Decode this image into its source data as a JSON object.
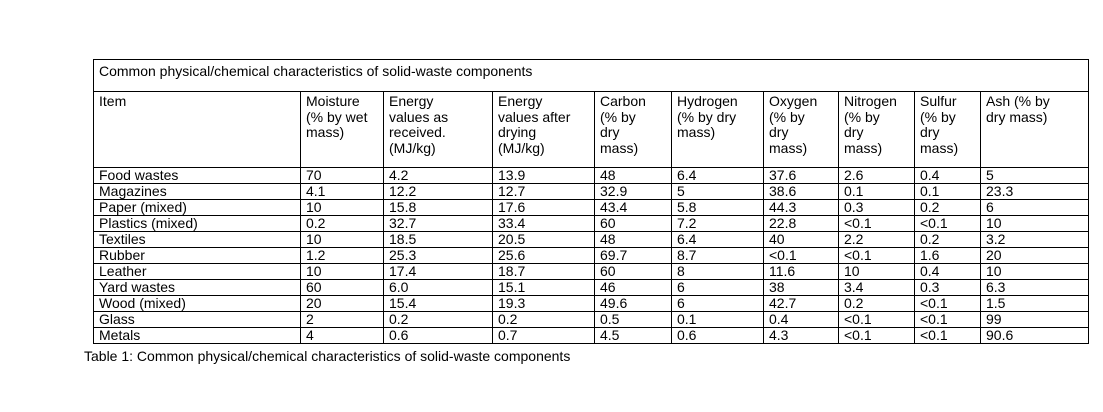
{
  "page": {
    "background": "#ffffff",
    "text_color": "#000000",
    "border_color": "#000000"
  },
  "table": {
    "title": "Common physical/chemical characteristics of solid-waste components",
    "columns": [
      "Item",
      "Moisture\n(% by wet\nmass)",
      "Energy\nvalues as\nreceived.\n(MJ/kg)",
      "Energy\nvalues after\ndrying\n(MJ/kg)",
      "Carbon\n(% by\ndry\nmass)",
      "Hydrogen\n(% by dry\nmass)",
      "Oxygen\n(% by\ndry\nmass)",
      "Nitrogen\n(% by\ndry\nmass)",
      "Sulfur\n(% by\ndry\nmass)",
      "Ash (% by\ndry mass)"
    ],
    "rows": [
      [
        "Food wastes",
        "70",
        "4.2",
        "13.9",
        "48",
        "6.4",
        "37.6",
        "2.6",
        "0.4",
        "5"
      ],
      [
        "Magazines",
        "4.1",
        "12.2",
        "12.7",
        "32.9",
        "5",
        "38.6",
        "0.1",
        "0.1",
        "23.3"
      ],
      [
        "Paper (mixed)",
        "10",
        "15.8",
        "17.6",
        "43.4",
        "5.8",
        "44.3",
        "0.3",
        "0.2",
        "6"
      ],
      [
        "Plastics (mixed)",
        "0.2",
        "32.7",
        "33.4",
        "60",
        "7.2",
        "22.8",
        "<0.1",
        "<0.1",
        "10"
      ],
      [
        "Textiles",
        "10",
        "18.5",
        "20.5",
        "48",
        "6.4",
        "40",
        "2.2",
        "0.2",
        "3.2"
      ],
      [
        "Rubber",
        "1.2",
        "25.3",
        "25.6",
        "69.7",
        "8.7",
        "<0.1",
        "<0.1",
        "1.6",
        "20"
      ],
      [
        "Leather",
        "10",
        "17.4",
        "18.7",
        "60",
        "8",
        "11.6",
        "10",
        "0.4",
        "10"
      ],
      [
        "Yard wastes",
        "60",
        "6.0",
        "15.1",
        "46",
        "6",
        "38",
        "3.4",
        "0.3",
        "6.3"
      ],
      [
        "Wood (mixed)",
        "20",
        "15.4",
        "19.3",
        "49.6",
        "6",
        "42.7",
        "0.2",
        "<0.1",
        "1.5"
      ],
      [
        "Glass",
        "2",
        "0.2",
        "0.2",
        "0.5",
        "0.1",
        "0.4",
        "<0.1",
        "<0.1",
        "99"
      ],
      [
        "Metals",
        "4",
        "0.6",
        "0.7",
        "4.5",
        "0.6",
        "4.3",
        "<0.1",
        "<0.1",
        "90.6"
      ]
    ]
  },
  "caption": "Table 1: Common physical/chemical characteristics of solid-waste components"
}
